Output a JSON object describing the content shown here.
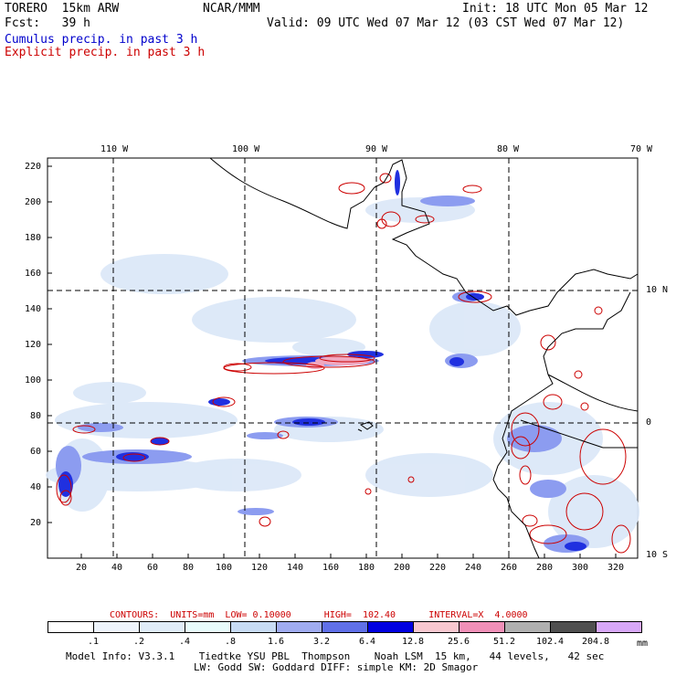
{
  "header": {
    "model": "TORERO  15km ARW",
    "org": "NCAR/MMM",
    "init": "Init: 18 UTC Mon 05 Mar 12",
    "fcst": "Fcst:   39 h",
    "valid": "Valid: 09 UTC Wed 07 Mar 12 (03 CST Wed 07 Mar 12)",
    "field1": "Cumulus precip. in past 3 h",
    "field2": "Explicit precip. in past 3 h"
  },
  "map": {
    "lon_labels": [
      "110 W",
      "100 W",
      "90 W",
      "80 W",
      "70 W"
    ],
    "lat_labels": [
      "10 N",
      "0",
      "10 S"
    ],
    "y_ticks": [
      "220",
      "200",
      "180",
      "160",
      "140",
      "120",
      "100",
      "80",
      "60",
      "40",
      "20"
    ],
    "x_ticks": [
      "20",
      "40",
      "60",
      "80",
      "100",
      "120",
      "140",
      "160",
      "180",
      "200",
      "220",
      "240",
      "260",
      "280",
      "300",
      "320"
    ],
    "colors": {
      "cumulus_light": "#dce8f8",
      "cumulus_mid": "#8c9cf0",
      "cumulus_dark": "#2030e0",
      "explicit": "#cc0000",
      "explicit_fill": "#f0a8c0"
    }
  },
  "contours": {
    "text": "CONTOURS:  UNITS=mm  LOW= 0.10000      HIGH=  102.40      INTERVAL=X  4.0000"
  },
  "legend": {
    "labels": [
      ".1",
      ".2",
      ".4",
      ".8",
      "1.6",
      "3.2",
      "6.4",
      "12.8",
      "25.6",
      "51.2",
      "102.4",
      "204.8"
    ],
    "unit": "mm",
    "colors": [
      "#ffffff",
      "#eef4fc",
      "#e0ecf8",
      "#e8fcfc",
      "#c8dcf4",
      "#a0acf0",
      "#6070e8",
      "#0000e0",
      "#f8c8d0",
      "#f090b8",
      "#b0b0b0",
      "#505050",
      "#d8a8f8"
    ]
  },
  "footer": {
    "line1": "Model Info: V3.3.1    Tiedtke YSU PBL  Thompson    Noah LSM  15 km,   44 levels,   42 sec",
    "line2": "LW: Godd SW: Goddard DIFF: simple KM: 2D Smagor"
  }
}
